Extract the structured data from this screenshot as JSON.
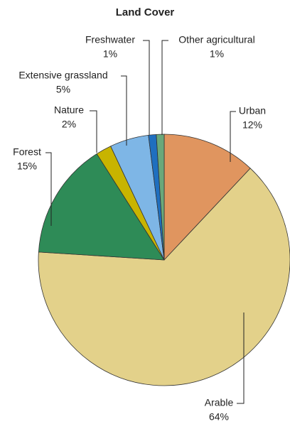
{
  "chart_data": {
    "type": "pie",
    "title": "Land Cover",
    "categories": [
      "Urban",
      "Arable",
      "Forest",
      "Nature",
      "Extensive grassland",
      "Freshwater",
      "Other agricultural"
    ],
    "values": [
      12,
      64,
      15,
      2,
      5,
      1,
      1
    ],
    "value_labels": [
      "12%",
      "64%",
      "15%",
      "2%",
      "5%",
      "1%",
      "1%"
    ],
    "colors": [
      "#e0955f",
      "#e3d18a",
      "#2e8b57",
      "#c8b400",
      "#7eb6e6",
      "#1f6fbf",
      "#6aa87a"
    ]
  }
}
